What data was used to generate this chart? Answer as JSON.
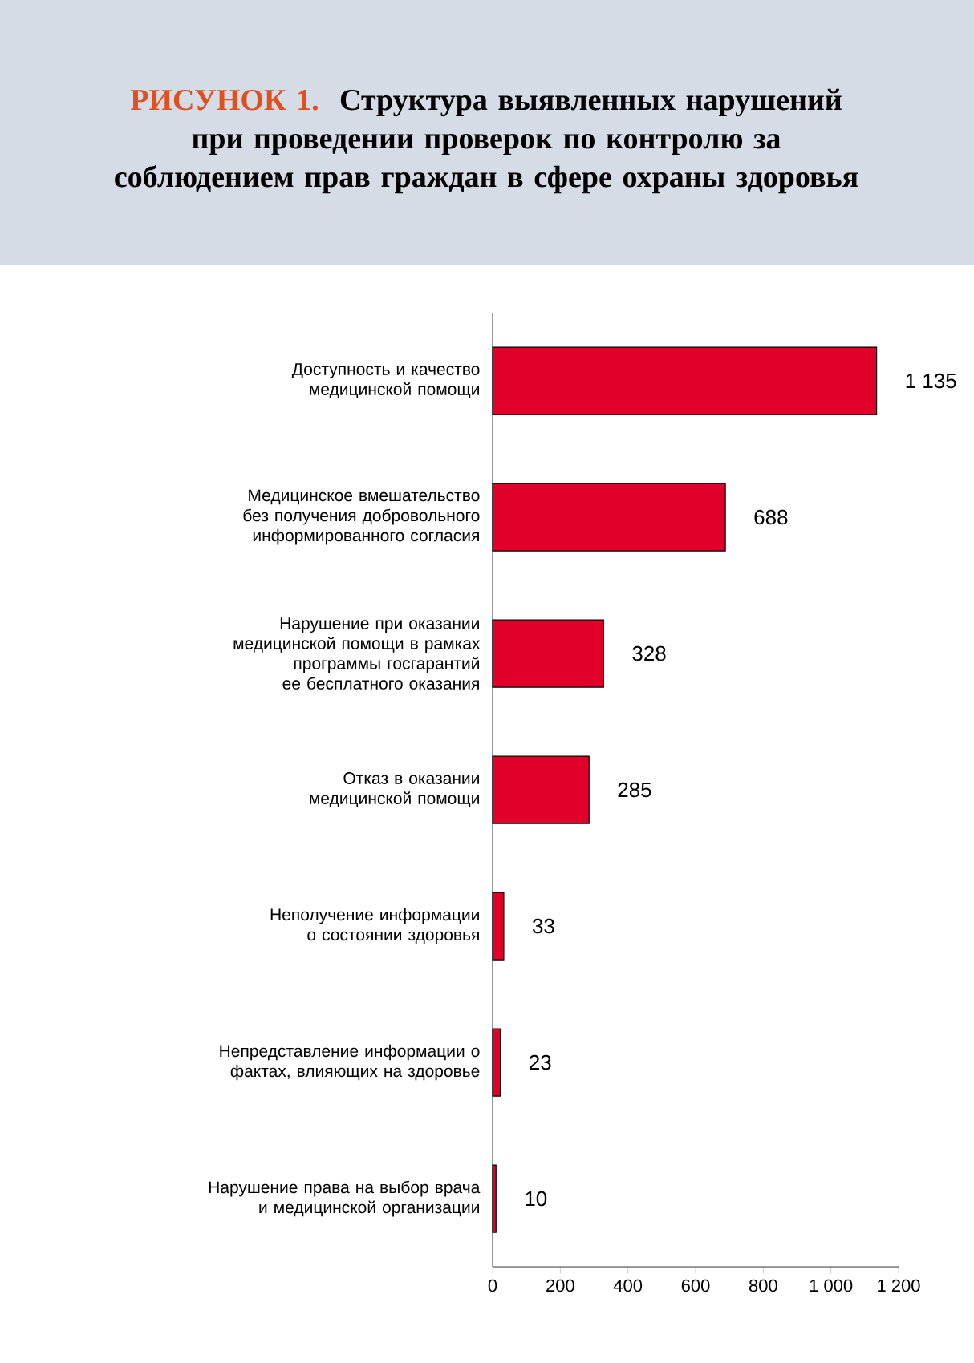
{
  "chart_data": {
    "type": "bar",
    "orientation": "horizontal",
    "title": "РИСУНОК 1.",
    "subtitle": "Структура выявленных нарушений при проведении проверок по контролю за соблюдением прав граждан в сфере охраны здоровья",
    "categories": [
      "Доступность и качество медицинской помощи",
      "Медицинское вмешательство без получения добровольного информированного согласия",
      "Нарушение при оказании медицинской помощи в рамках программы госгарантий ее бесплатного оказания",
      "Отказ в оказании медицинской помощи",
      "Неполучение информации о состоянии здоровья",
      "Непредставление информации о фактах, влияющих на здоровье",
      "Нарушение права на выбор врача и медицинской организации"
    ],
    "values": [
      1135,
      688,
      328,
      285,
      33,
      23,
      10
    ],
    "value_labels": [
      "1 135",
      "688",
      "328",
      "285",
      "33",
      "23",
      "10"
    ],
    "color": "#e0002a",
    "xlim": [
      0,
      1200
    ],
    "xticks": [
      0,
      200,
      400,
      600,
      800,
      {
        "value": 1000,
        "label": "1 000"
      },
      {
        "value": 1200,
        "label": "1 200"
      }
    ]
  }
}
